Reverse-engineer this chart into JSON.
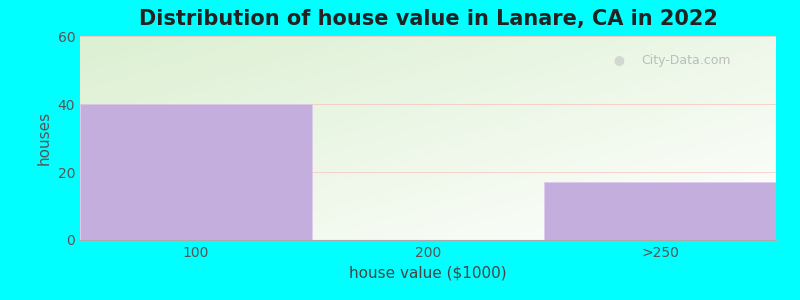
{
  "title": "Distribution of house value in Lanare, CA in 2022",
  "xlabel": "house value ($1000)",
  "ylabel": "houses",
  "categories": [
    "100",
    "200",
    ">250"
  ],
  "values": [
    40,
    0,
    17
  ],
  "bar_color": "#C4AEDD",
  "ylim": [
    0,
    60
  ],
  "yticks": [
    0,
    20,
    40,
    60
  ],
  "background_color": "#00FFFF",
  "title_fontsize": 15,
  "axis_label_fontsize": 11,
  "tick_fontsize": 10,
  "watermark_text": "City-Data.com"
}
